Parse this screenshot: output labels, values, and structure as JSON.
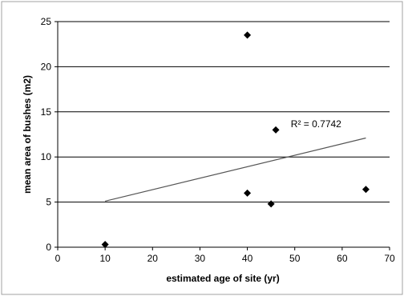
{
  "chart_data": {
    "type": "scatter",
    "title": "",
    "xlabel": "estimated age of site (yr)",
    "ylabel": "mean area of bushes (m2)",
    "xlim": [
      0,
      70
    ],
    "ylim": [
      0,
      25
    ],
    "xticks": [
      0,
      10,
      20,
      30,
      40,
      50,
      60,
      70
    ],
    "yticks": [
      0,
      5,
      10,
      15,
      20,
      25
    ],
    "grid": "horizontal",
    "legend": "none",
    "colors": {
      "marker": "#000000",
      "trendline": "#555555",
      "grid": "#000000",
      "background": "#ffffff"
    },
    "series": [
      {
        "marker": "diamond",
        "x": [
          10,
          40,
          40,
          45,
          46,
          65
        ],
        "y": [
          0.3,
          23.5,
          6.0,
          4.8,
          13.0,
          6.4
        ]
      }
    ],
    "trendline": {
      "type": "linear",
      "start": [
        10,
        5.1
      ],
      "end": [
        65,
        12.1
      ]
    },
    "annotations": [
      {
        "text": "R² = 0.7742",
        "x": 54.5,
        "y": 13.3
      }
    ]
  }
}
